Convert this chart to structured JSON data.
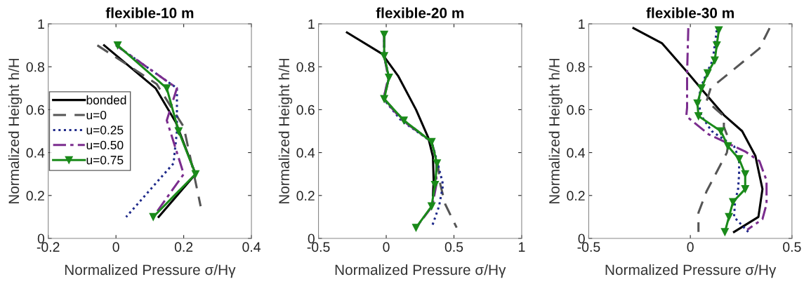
{
  "chart_data": [
    {
      "type": "line",
      "title": "flexible-10 m",
      "xlabel": "Normalized Pressure σ/Hγ",
      "ylabel": "Normalized Height h/H",
      "xlim": [
        -0.2,
        0.4
      ],
      "xticks": [
        -0.2,
        0,
        0.2,
        0.4
      ],
      "ylim": [
        0,
        1
      ],
      "yticks": [
        0,
        0.2,
        0.4,
        0.6,
        0.8,
        1
      ],
      "grid": false,
      "legend": "center left",
      "series": [
        {
          "name": "bonded",
          "color": "#000000",
          "line_style": "solid",
          "marker": "none",
          "x": [
            -0.035,
            0.117,
            0.177,
            0.235,
            0.126
          ],
          "values": [
            0.9,
            0.7,
            0.54,
            0.3,
            0.1
          ]
        },
        {
          "name": "u=0",
          "color": "#555555",
          "line_style": "dashed",
          "marker": "none",
          "x": [
            -0.055,
            0.12,
            0.2,
            0.23,
            0.25
          ],
          "values": [
            0.9,
            0.72,
            0.52,
            0.3,
            0.15
          ]
        },
        {
          "name": "u=0.25",
          "color": "#1f2a8a",
          "line_style": "dotted",
          "marker": "none",
          "x": [
            0.0,
            0.18,
            0.18,
            0.17,
            0.03
          ],
          "values": [
            0.9,
            0.7,
            0.5,
            0.35,
            0.1
          ]
        },
        {
          "name": "u=0.50",
          "color": "#7b2d8e",
          "line_style": "dashdot",
          "marker": "none",
          "x": [
            0.0,
            0.18,
            0.15,
            0.2,
            0.11
          ],
          "values": [
            0.9,
            0.7,
            0.55,
            0.3,
            0.1
          ]
        },
        {
          "name": "u=0.75",
          "color": "#1a8a1a",
          "line_style": "solid",
          "marker": "triangle_down",
          "x": [
            0.005,
            0.15,
            0.185,
            0.235,
            0.11
          ],
          "values": [
            0.9,
            0.7,
            0.5,
            0.3,
            0.1
          ]
        }
      ]
    },
    {
      "type": "line",
      "title": "flexible-20 m",
      "xlabel": "Normalized Pressure σ/Hγ",
      "ylabel": "Normalized Height h/H",
      "xlim": [
        -0.5,
        1
      ],
      "xticks": [
        -0.5,
        0,
        0.5,
        1
      ],
      "ylim": [
        0,
        1
      ],
      "yticks": [
        0,
        0.2,
        0.4,
        0.6,
        0.8,
        1
      ],
      "grid": false,
      "legend": false,
      "series": [
        {
          "color": "#000000",
          "line_style": "solid",
          "marker": "none",
          "x": [
            -0.29,
            -0.03,
            0.09,
            0.22,
            0.31,
            0.345,
            0.35,
            0.345
          ],
          "values": [
            0.96,
            0.86,
            0.755,
            0.6,
            0.47,
            0.38,
            0.27,
            0.2
          ]
        },
        {
          "color": "#555555",
          "line_style": "dashed",
          "marker": "none",
          "x": [
            -0.015,
            -0.015,
            0.02,
            -0.015,
            0.13,
            0.335,
            0.38,
            0.4,
            0.435,
            0.52
          ],
          "values": [
            0.95,
            0.85,
            0.75,
            0.65,
            0.55,
            0.45,
            0.35,
            0.25,
            0.16,
            0.05
          ]
        },
        {
          "color": "#1f2a8a",
          "line_style": "dotted",
          "marker": "none",
          "x": [
            -0.015,
            -0.015,
            0.02,
            -0.02,
            0.11,
            0.335,
            0.38,
            0.42,
            0.39,
            0.335
          ],
          "values": [
            0.95,
            0.85,
            0.75,
            0.65,
            0.55,
            0.45,
            0.35,
            0.25,
            0.15,
            0.05
          ]
        },
        {
          "color": "#7b2d8e",
          "line_style": "dashdot",
          "marker": "none",
          "x": [
            -0.015,
            -0.015,
            0.015,
            -0.02,
            0.12,
            0.335,
            0.37,
            0.37,
            0.34,
            0.22
          ],
          "values": [
            0.95,
            0.85,
            0.75,
            0.65,
            0.55,
            0.45,
            0.35,
            0.25,
            0.15,
            0.05
          ]
        },
        {
          "color": "#1a8a1a",
          "line_style": "solid",
          "marker": "triangle_down",
          "x": [
            -0.015,
            -0.015,
            0.02,
            -0.015,
            0.13,
            0.335,
            0.375,
            0.36,
            0.335,
            0.22
          ],
          "values": [
            0.95,
            0.85,
            0.75,
            0.65,
            0.55,
            0.45,
            0.35,
            0.25,
            0.15,
            0.05
          ]
        }
      ]
    },
    {
      "type": "line",
      "title": "flexible-30 m",
      "xlabel": "Normalized Pressure σ/Hγ",
      "ylabel": "Normalized Height h/H",
      "xlim": [
        -0.5,
        0.5
      ],
      "xticks": [
        -0.5,
        0,
        0.5
      ],
      "ylim": [
        0,
        1
      ],
      "yticks": [
        0,
        0.2,
        0.4,
        0.6,
        0.8,
        1
      ],
      "grid": false,
      "legend": false,
      "series": [
        {
          "color": "#000000",
          "line_style": "solid",
          "marker": "none",
          "x": [
            -0.28,
            -0.14,
            -0.02,
            0.065,
            0.165,
            0.255,
            0.32,
            0.355,
            0.335,
            0.215
          ],
          "values": [
            0.98,
            0.91,
            0.78,
            0.685,
            0.575,
            0.5,
            0.385,
            0.23,
            0.1,
            0.03
          ]
        },
        {
          "color": "#555555",
          "line_style": "dashed",
          "marker": "none",
          "x": [
            0.39,
            0.34,
            0.1,
            0.08,
            0.165,
            0.165,
            0.19,
            0.18,
            0.08,
            0.04,
            0.04
          ],
          "values": [
            0.98,
            0.885,
            0.7,
            0.64,
            0.57,
            0.52,
            0.46,
            0.4,
            0.22,
            0.12,
            0.03
          ]
        },
        {
          "color": "#1f2a8a",
          "line_style": "dotted",
          "marker": "none",
          "x": [
            0.13,
            0.12,
            0.11,
            0.08,
            0.05,
            0.04,
            0.055,
            0.105,
            0.215,
            0.24,
            0.24,
            0.235,
            0.22,
            0.215,
            0.285
          ],
          "values": [
            0.97,
            0.9,
            0.83,
            0.77,
            0.7,
            0.63,
            0.57,
            0.5,
            0.43,
            0.37,
            0.3,
            0.23,
            0.17,
            0.1,
            0.03
          ]
        },
        {
          "color": "#7b2d8e",
          "line_style": "dashdot",
          "marker": "none",
          "x": [
            -0.01,
            -0.016,
            -0.016,
            -0.016,
            -0.02,
            0.09,
            0.27,
            0.34,
            0.375,
            0.375,
            0.355,
            0.28
          ],
          "values": [
            0.98,
            0.77,
            0.7,
            0.61,
            0.57,
            0.485,
            0.405,
            0.36,
            0.27,
            0.16,
            0.09,
            0.04
          ]
        },
        {
          "color": "#1a8a1a",
          "line_style": "solid",
          "marker": "triangle_down",
          "x": [
            0.14,
            0.13,
            0.12,
            0.085,
            0.055,
            0.035,
            0.04,
            0.15,
            0.185,
            0.24,
            0.27,
            0.27,
            0.21,
            0.19,
            0.17
          ],
          "values": [
            0.97,
            0.9,
            0.83,
            0.77,
            0.7,
            0.63,
            0.57,
            0.5,
            0.43,
            0.37,
            0.3,
            0.23,
            0.17,
            0.1,
            0.03
          ]
        }
      ]
    }
  ]
}
